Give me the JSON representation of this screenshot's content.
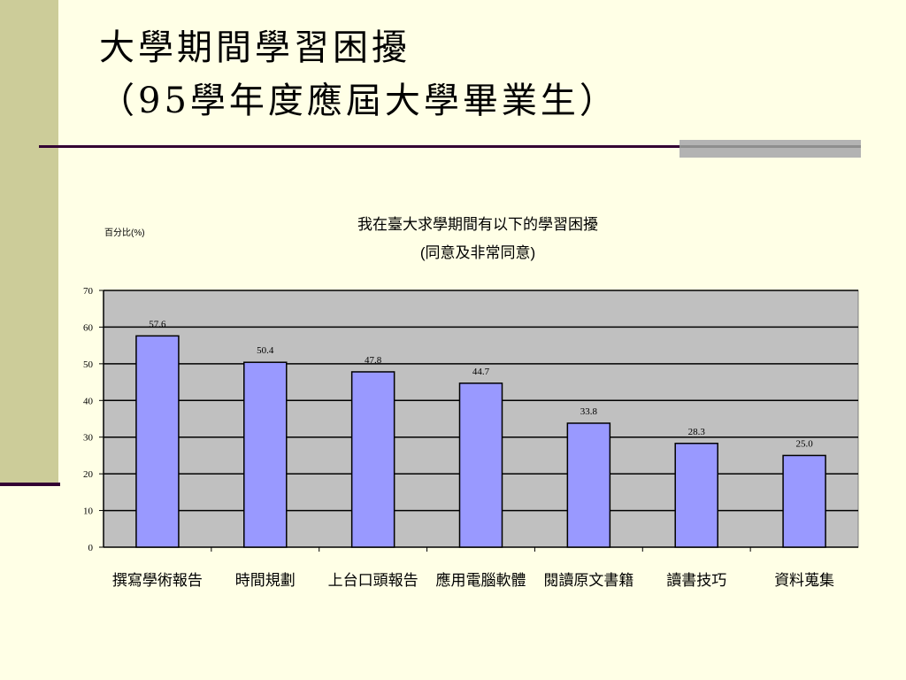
{
  "slide": {
    "title_line1": "大學期間學習困擾",
    "title_line2": "（95學年度應屆大學畢業生）"
  },
  "chart_data": {
    "type": "bar",
    "title": "我在臺大求學期間有以下的學習困擾",
    "subtitle": "(同意及非常同意)",
    "ylabel": "百分比(%)",
    "xlabel": "",
    "categories": [
      "撰寫學術報告",
      "時間規劃",
      "上台口頭報告",
      "應用電腦軟體",
      "閱讀原文書籍",
      "讀書技巧",
      "資料蒐集"
    ],
    "values": [
      57.6,
      50.4,
      47.8,
      44.7,
      33.8,
      28.3,
      25.0
    ],
    "value_labels": [
      "57.6",
      "50.4",
      "47.8",
      "44.7",
      "33.8",
      "28.3",
      "25.0"
    ],
    "ylim": [
      0,
      70
    ],
    "yticks": [
      "0",
      "10",
      "20",
      "30",
      "40",
      "50",
      "60",
      "70"
    ],
    "grid": true,
    "legend": "none",
    "colors": {
      "bar_fill": "#9999FF",
      "bar_stroke": "#000000",
      "plot_bg": "#C0C0C0",
      "gridline": "#000000"
    }
  }
}
